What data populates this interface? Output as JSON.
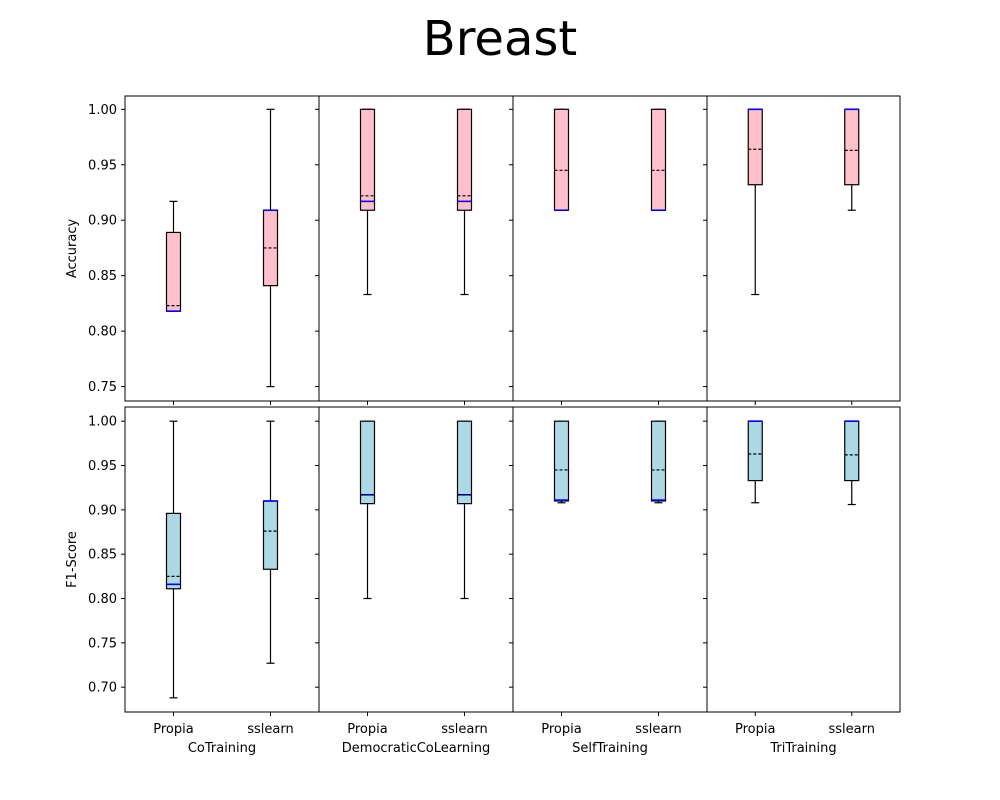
{
  "chart_data": {
    "type": "box",
    "title": "Breast",
    "metrics": [
      "Accuracy",
      "F1-Score"
    ],
    "methods": [
      "CoTraining",
      "DemocraticCoLearning",
      "SelfTraining",
      "TriTraining"
    ],
    "categories": [
      "Propia",
      "sslearn"
    ],
    "ylim": {
      "Accuracy": [
        0.737,
        1.012
      ],
      "F1-Score": [
        0.672,
        1.016
      ]
    },
    "yticks": {
      "Accuracy": [
        "0.75",
        "0.80",
        "0.85",
        "0.90",
        "0.95",
        "1.00"
      ],
      "F1-Score": [
        "0.70",
        "0.75",
        "0.80",
        "0.85",
        "0.90",
        "0.95",
        "1.00"
      ]
    },
    "colors": {
      "Accuracy": "#ffc0cb",
      "F1-Score": "#add8e6",
      "median": "#0000ff",
      "mean": "#000000",
      "edge": "#000000"
    },
    "boxes": {
      "Accuracy": {
        "CoTraining": [
          {
            "min": 0.818,
            "q1": 0.818,
            "median": 0.818,
            "mean": 0.823,
            "q3": 0.889,
            "max": 0.917
          },
          {
            "min": 0.75,
            "q1": 0.841,
            "median": 0.909,
            "mean": 0.875,
            "q3": 0.909,
            "max": 1.0
          }
        ],
        "DemocraticCoLearning": [
          {
            "min": 0.833,
            "q1": 0.909,
            "median": 0.917,
            "mean": 0.922,
            "q3": 1.0,
            "max": 1.0
          },
          {
            "min": 0.833,
            "q1": 0.909,
            "median": 0.917,
            "mean": 0.922,
            "q3": 1.0,
            "max": 1.0
          }
        ],
        "SelfTraining": [
          {
            "min": 0.909,
            "q1": 0.909,
            "median": 0.909,
            "mean": 0.945,
            "q3": 1.0,
            "max": 1.0
          },
          {
            "min": 0.909,
            "q1": 0.909,
            "median": 0.909,
            "mean": 0.945,
            "q3": 1.0,
            "max": 1.0
          }
        ],
        "TriTraining": [
          {
            "min": 0.833,
            "q1": 0.932,
            "median": 1.0,
            "mean": 0.964,
            "q3": 1.0,
            "max": 1.0
          },
          {
            "min": 0.909,
            "q1": 0.932,
            "median": 1.0,
            "mean": 0.963,
            "q3": 1.0,
            "max": 1.0
          }
        ]
      },
      "F1-Score": {
        "CoTraining": [
          {
            "min": 0.688,
            "q1": 0.811,
            "median": 0.816,
            "mean": 0.825,
            "q3": 0.896,
            "max": 1.0
          },
          {
            "min": 0.727,
            "q1": 0.833,
            "median": 0.91,
            "mean": 0.876,
            "q3": 0.91,
            "max": 1.0
          }
        ],
        "DemocraticCoLearning": [
          {
            "min": 0.8,
            "q1": 0.907,
            "median": 0.917,
            "mean": 0.917,
            "q3": 1.0,
            "max": 1.0
          },
          {
            "min": 0.8,
            "q1": 0.907,
            "median": 0.917,
            "mean": 0.917,
            "q3": 1.0,
            "max": 1.0
          }
        ],
        "SelfTraining": [
          {
            "min": 0.908,
            "q1": 0.91,
            "median": 0.911,
            "mean": 0.945,
            "q3": 1.0,
            "max": 1.0
          },
          {
            "min": 0.908,
            "q1": 0.91,
            "median": 0.911,
            "mean": 0.945,
            "q3": 1.0,
            "max": 1.0
          }
        ],
        "TriTraining": [
          {
            "min": 0.908,
            "q1": 0.933,
            "median": 1.0,
            "mean": 0.963,
            "q3": 1.0,
            "max": 1.0
          },
          {
            "min": 0.906,
            "q1": 0.933,
            "median": 1.0,
            "mean": 0.962,
            "q3": 1.0,
            "max": 1.0
          }
        ]
      }
    }
  }
}
